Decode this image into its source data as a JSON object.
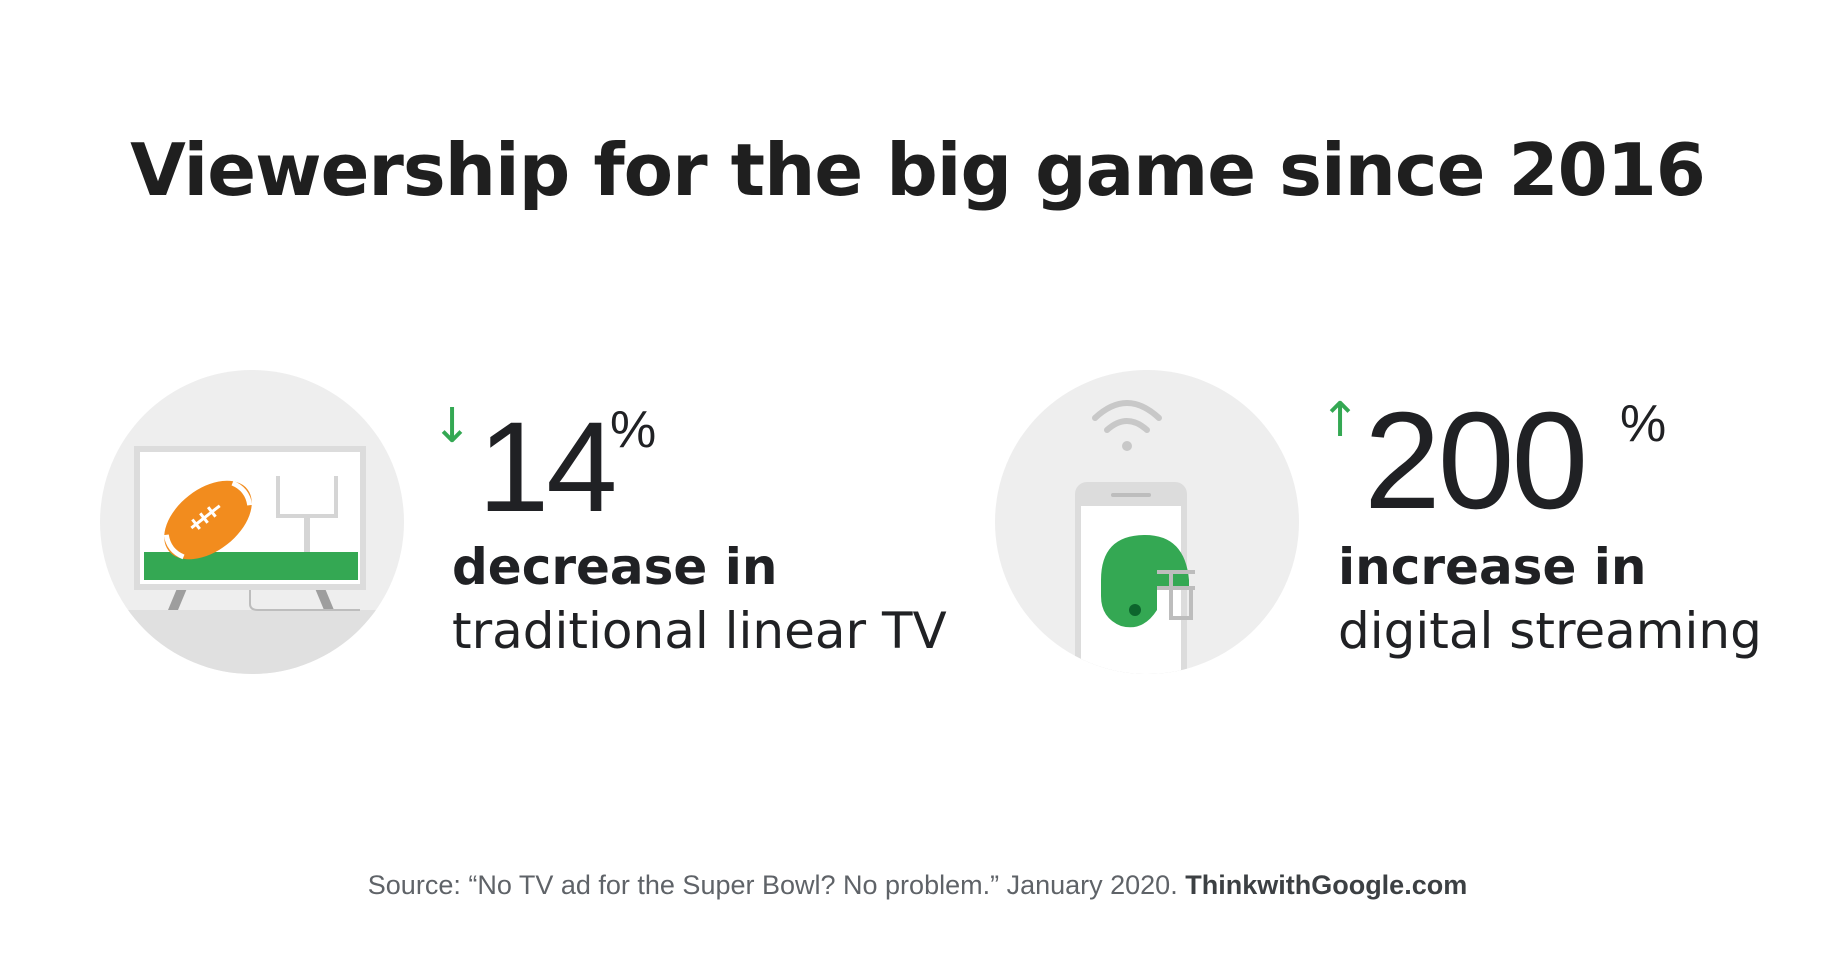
{
  "title": "Viewership for the big game since 2016",
  "stats": [
    {
      "arrow": "↓",
      "arrow_color": "#34A853",
      "value": "14",
      "unit": "%",
      "label_bold": "decrease in",
      "label_regular": "traditional linear TV"
    },
    {
      "arrow": "↑",
      "arrow_color": "#34A853",
      "value": "200",
      "unit": "%",
      "label_bold": "increase in",
      "label_regular": "digital streaming"
    }
  ],
  "source": {
    "text": "Source: “No TV ad for the Super Bowl? No problem.” January 2020.",
    "brand": "ThinkwithGoogle.com"
  },
  "colors": {
    "green": "#34A853",
    "orange": "#F28C1E",
    "circle_bg": "#EEEEEE",
    "text": "#202124"
  }
}
